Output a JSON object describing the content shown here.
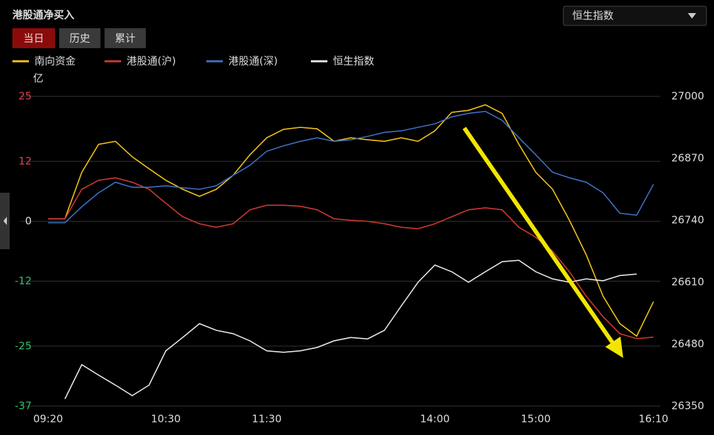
{
  "tabs": [
    "当日",
    "历史",
    "累计"
  ],
  "dropdown": "恒生指数",
  "chart_data": {
    "type": "line",
    "title": "港股通净买入",
    "y_label": "亿",
    "categories": [
      "09:20",
      null,
      null,
      null,
      null,
      null,
      null,
      "10:30",
      null,
      null,
      null,
      null,
      null,
      "11:30",
      null,
      null,
      null,
      null,
      null,
      null,
      null,
      null,
      null,
      "14:00",
      null,
      null,
      null,
      null,
      null,
      "15:00",
      null,
      null,
      null,
      null,
      null,
      null,
      "16:10"
    ],
    "series": [
      {
        "name": "南向资金",
        "color": "#f5c518",
        "values": [
          0.5,
          0.5,
          9.8,
          15.4,
          16,
          12.9,
          10.5,
          8.2,
          6.4,
          5,
          6.4,
          9.2,
          13.3,
          16.7,
          18.4,
          18.8,
          18.5,
          16,
          16.7,
          16.3,
          16,
          16.7,
          16,
          18.1,
          21.8,
          22.2,
          23.3,
          21.6,
          15.4,
          9.8,
          6.4,
          0.2,
          -6.7,
          -15,
          -20.5,
          -23,
          -16.1
        ]
      },
      {
        "name": "港股通(沪)",
        "color": "#d03a30",
        "values": [
          0.5,
          0.5,
          6.4,
          8.2,
          8.7,
          7.8,
          6.4,
          3.6,
          0.9,
          -0.5,
          -1.2,
          -0.5,
          2.3,
          3.2,
          3.2,
          3,
          2.3,
          0.5,
          0.2,
          0,
          -0.5,
          -1.2,
          -1.5,
          -0.5,
          0.9,
          2.3,
          2.7,
          2.3,
          -1.2,
          -3.2,
          -6,
          -10.1,
          -15,
          -19.1,
          -22.5,
          -23.5,
          -23.2
        ]
      },
      {
        "name": "港股通(深)",
        "color": "#3d72c4",
        "values": [
          -0.3,
          -0.3,
          2.9,
          5.7,
          7.8,
          6.8,
          6.8,
          7.1,
          6.7,
          6.4,
          7.1,
          9.2,
          11.2,
          14,
          15.1,
          16,
          16.7,
          16,
          16.3,
          17,
          17.8,
          18.1,
          18.8,
          19.5,
          20.9,
          21.6,
          22,
          20.2,
          16.7,
          13.3,
          9.8,
          8.7,
          7.8,
          5.7,
          1.6,
          1.2,
          7.4
        ]
      },
      {
        "name": "恒生指数",
        "color": "#e8e8e8",
        "axis": "y2",
        "values": [
          null,
          26365,
          26437,
          26415,
          26394,
          26372,
          26394,
          26466,
          26494,
          26523,
          26509,
          26502,
          26487,
          26466,
          26463,
          26466,
          26473,
          26487,
          26494,
          26491,
          26509,
          26560,
          26610,
          26646,
          26632,
          26610,
          26632,
          26653,
          26656,
          26632,
          26617,
          26610,
          26617,
          26613,
          26624,
          26627,
          null
        ]
      }
    ],
    "ylim": [
      -37,
      25
    ],
    "yticks": [
      25,
      12,
      0,
      -12,
      -25,
      -37
    ],
    "y2lim": [
      26350,
      27000
    ],
    "y2ticks": [
      27000,
      26870,
      26740,
      26610,
      26480,
      26350
    ],
    "grid": true
  }
}
